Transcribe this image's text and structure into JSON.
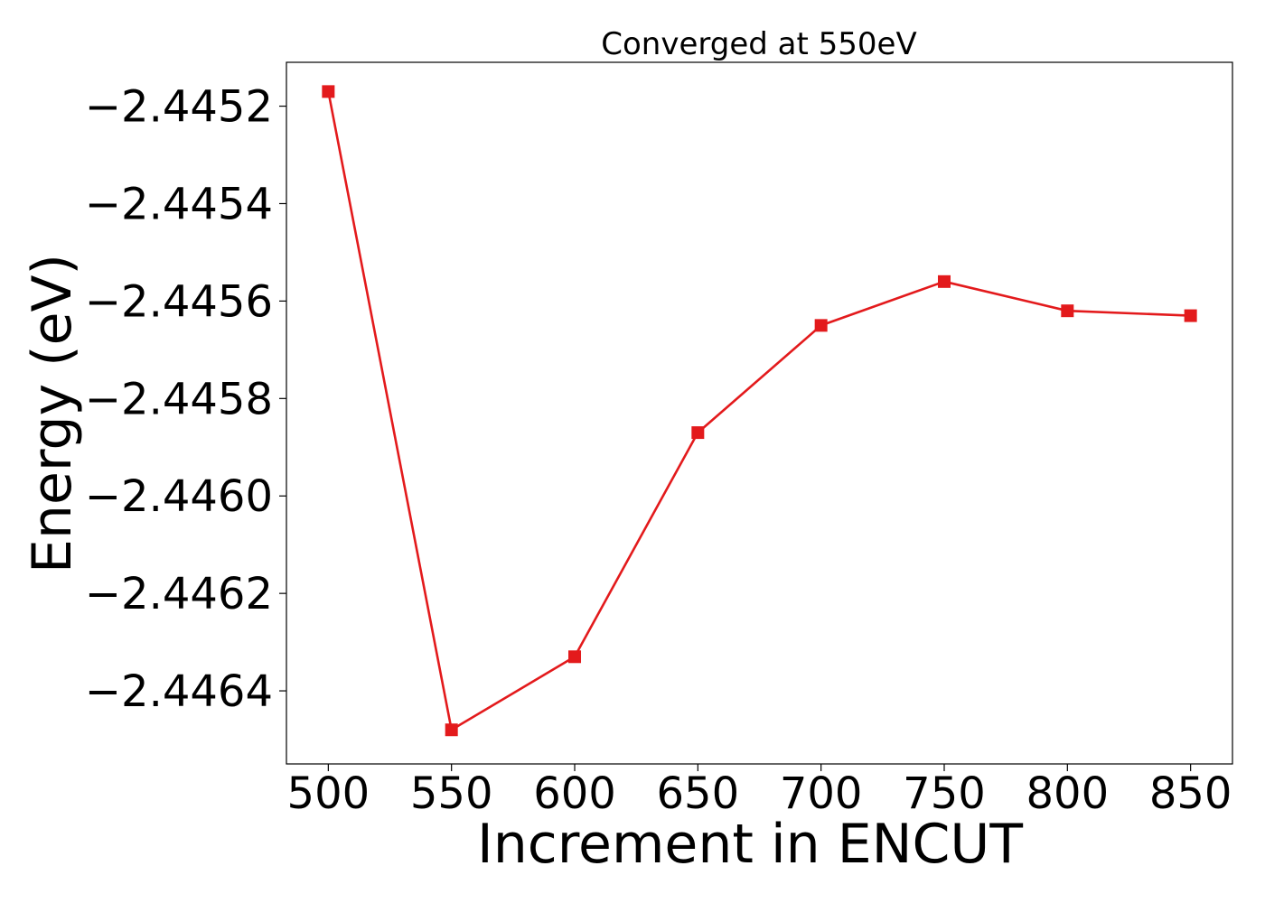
{
  "chart_data": {
    "type": "line",
    "title": "Converged at 550eV",
    "xlabel": "Increment in ENCUT",
    "ylabel": "Energy (eV)",
    "x": [
      500,
      550,
      600,
      650,
      700,
      750,
      800,
      850
    ],
    "series": [
      {
        "values": [
          -2.44517,
          -2.44648,
          -2.44633,
          -2.44587,
          -2.44565,
          -2.44556,
          -2.44562,
          -2.44563
        ],
        "color": "#e31a1c",
        "marker": "square"
      }
    ],
    "xlim": [
      483,
      867
    ],
    "ylim": [
      -2.44655,
      -2.44511
    ],
    "xticks": [
      500,
      550,
      600,
      650,
      700,
      750,
      800,
      850
    ],
    "xtick_labels": [
      "500",
      "550",
      "600",
      "650",
      "700",
      "750",
      "800",
      "850"
    ],
    "yticks": [
      -2.4452,
      -2.4454,
      -2.4456,
      -2.4458,
      -2.446,
      -2.4462,
      -2.4464
    ],
    "ytick_labels": [
      "−2.4452",
      "−2.4454",
      "−2.4456",
      "−2.4458",
      "−2.4460",
      "−2.4462",
      "−2.4464"
    ],
    "grid": false,
    "legend": "none"
  }
}
